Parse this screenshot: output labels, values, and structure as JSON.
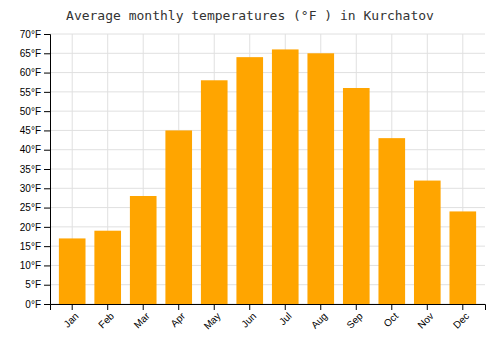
{
  "chart_data": {
    "type": "bar",
    "title": "Average monthly temperatures (°F ) in Kurchatov",
    "categories": [
      "Jan",
      "Feb",
      "Mar",
      "Apr",
      "May",
      "Jun",
      "Jul",
      "Aug",
      "Sep",
      "Oct",
      "Nov",
      "Dec"
    ],
    "values": [
      17,
      19,
      28,
      45,
      58,
      64,
      66,
      65,
      56,
      43,
      32,
      24
    ],
    "color": "#FFA500",
    "ylim": [
      0,
      70
    ],
    "yticks": [
      {
        "value": 0,
        "label": "0°F"
      },
      {
        "value": 5,
        "label": "5°F"
      },
      {
        "value": 10,
        "label": "10°F"
      },
      {
        "value": 15,
        "label": "15°F"
      },
      {
        "value": 20,
        "label": "20°F"
      },
      {
        "value": 25,
        "label": "25°F"
      },
      {
        "value": 30,
        "label": "30°F"
      },
      {
        "value": 35,
        "label": "35°F"
      },
      {
        "value": 40,
        "label": "40°F"
      },
      {
        "value": 45,
        "label": "45°F"
      },
      {
        "value": 50,
        "label": "50°F"
      },
      {
        "value": 55,
        "label": "55°F"
      },
      {
        "value": 60,
        "label": "60°F"
      },
      {
        "value": 65,
        "label": "65°F"
      },
      {
        "value": 70,
        "label": "70°F"
      }
    ],
    "grid": true
  }
}
